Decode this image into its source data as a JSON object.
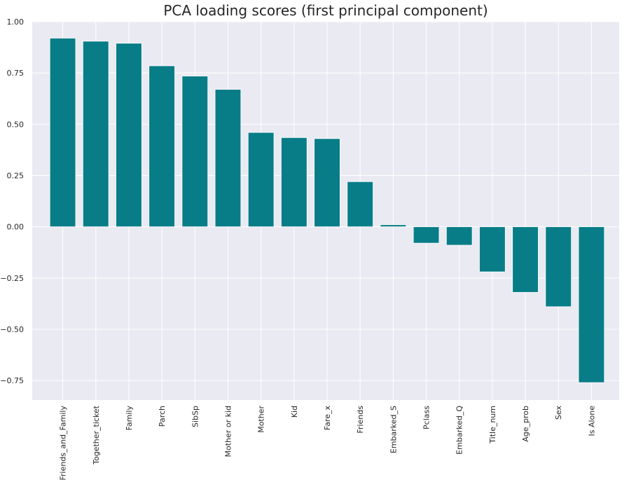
{
  "chart_data": {
    "type": "bar",
    "title": "PCA loading scores (first principal component)",
    "xlabel": "",
    "ylabel": "",
    "categories": [
      "Friends_and_Family",
      "Together_ticket",
      "Family",
      "Parch",
      "SibSp",
      "Mother or kid",
      "Mother",
      "Kid",
      "Fare_x",
      "Friends",
      "Embarked_S",
      "Pclass",
      "Embarked_Q",
      "Title_num",
      "Age_prob",
      "Sex",
      "Is Alone"
    ],
    "values": [
      0.92,
      0.905,
      0.895,
      0.785,
      0.735,
      0.67,
      0.46,
      0.435,
      0.43,
      0.22,
      0.01,
      -0.08,
      -0.09,
      -0.22,
      -0.32,
      -0.39,
      -0.76
    ],
    "ylim": [
      -0.845,
      1.0
    ],
    "yticks": [
      1.0,
      0.75,
      0.5,
      0.25,
      0.0,
      -0.25,
      -0.5,
      -0.75
    ],
    "ytick_labels": [
      "1.00",
      "0.75",
      "0.50",
      "0.25",
      "0.00",
      "−0.25",
      "−0.50",
      "−0.75"
    ],
    "grid": true,
    "colors": {
      "bar": "#087d88",
      "background": "#eaeaf2",
      "grid": "#ffffff"
    }
  }
}
